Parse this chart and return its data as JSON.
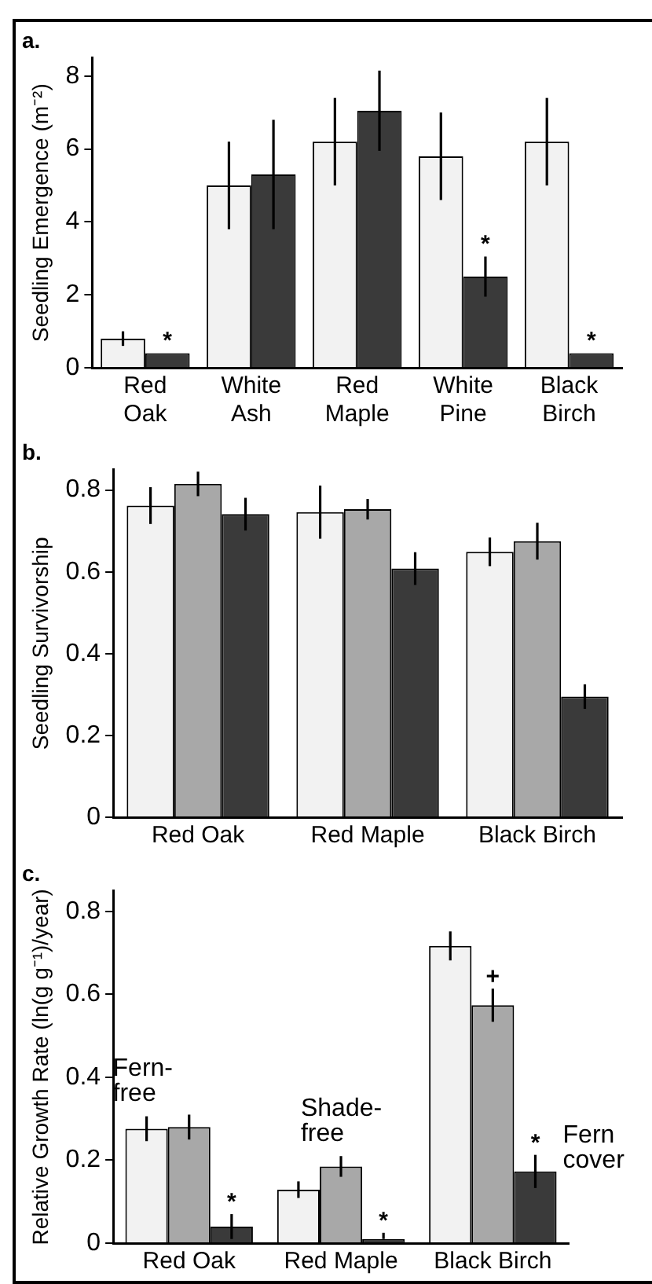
{
  "chart_data": [
    {
      "type": "bar",
      "title": "a.",
      "ylabel": "Seedling Emergence (m⁻²)",
      "categories": [
        "Red Oak",
        "White Ash",
        "Red Maple",
        "White Pine",
        "Black Birch"
      ],
      "series": [
        {
          "color": "#f2f2f2",
          "values": [
            0.8,
            5.0,
            6.2,
            5.8,
            6.2
          ],
          "errors": [
            0.2,
            1.2,
            1.2,
            1.2,
            1.2
          ]
        },
        {
          "color": "#3a3a3a",
          "values": [
            0.4,
            5.3,
            7.05,
            2.5,
            0.4
          ],
          "errors": [
            null,
            1.5,
            1.1,
            0.55,
            null
          ]
        }
      ],
      "ylim": [
        0,
        8.5
      ],
      "yticks": [
        0,
        2,
        4,
        6,
        8
      ],
      "grid": false,
      "annotations": [
        {
          "text": "*",
          "x": "Red Oak",
          "y": 0.4
        },
        {
          "text": "*",
          "x": "White Pine",
          "y": 3.05
        },
        {
          "text": "*",
          "x": "Black Birch",
          "y": 0.4
        }
      ]
    },
    {
      "type": "bar",
      "title": "b.",
      "ylabel": "Seedling Survivorship",
      "categories": [
        "Red Oak",
        "Red Maple",
        "Black Birch"
      ],
      "series": [
        {
          "color": "#f2f2f2",
          "values": [
            0.762,
            0.746,
            0.649
          ],
          "errors": [
            0.045,
            0.065,
            0.035
          ]
        },
        {
          "color": "#a8a8a8",
          "values": [
            0.815,
            0.753,
            0.675
          ],
          "errors": [
            0.03,
            0.025,
            0.045
          ]
        },
        {
          "color": "#3a3a3a",
          "values": [
            0.741,
            0.608,
            0.295
          ],
          "errors": [
            0.04,
            0.04,
            0.03
          ]
        }
      ],
      "ylim": [
        0,
        0.85
      ],
      "yticks": [
        0,
        0.2,
        0.4,
        0.6,
        0.8
      ],
      "grid": false
    },
    {
      "type": "bar",
      "title": "c.",
      "ylabel": "Relative Growth Rate (ln(g g⁻¹)/year)",
      "categories": [
        "Red Oak",
        "Red Maple",
        "Black Birch"
      ],
      "series": [
        {
          "name": "Fern-free",
          "color": "#f2f2f2",
          "values": [
            0.276,
            0.129,
            0.717
          ],
          "errors": [
            0.03,
            0.02,
            0.035
          ]
        },
        {
          "name": "Shade-free",
          "color": "#a8a8a8",
          "values": [
            0.28,
            0.185,
            0.574
          ],
          "errors": [
            0.03,
            0.025,
            0.04
          ]
        },
        {
          "name": "Fern cover",
          "color": "#3a3a3a",
          "values": [
            0.04,
            0.01,
            0.173
          ],
          "errors": [
            0.03,
            [
              0.01,
              0.025
            ],
            0.04
          ]
        }
      ],
      "ylim": [
        0,
        0.85
      ],
      "yticks": [
        0,
        0.2,
        0.4,
        0.6,
        0.8
      ],
      "grid": false,
      "annotations": [
        "*",
        "*",
        "*",
        {
          "text": "+",
          "x": "Black Birch",
          "y": 0.614
        }
      ]
    }
  ]
}
